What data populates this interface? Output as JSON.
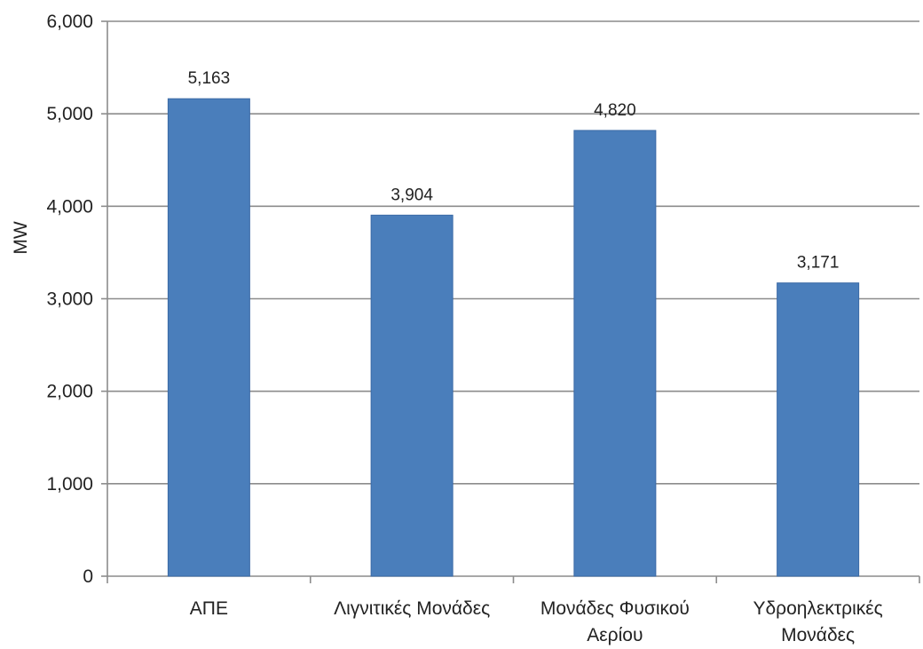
{
  "chart_data": {
    "type": "bar",
    "categories": [
      [
        "ΑΠΕ"
      ],
      [
        "Λιγνιτικές Μονάδες"
      ],
      [
        "Μονάδες Φυσικού",
        "Αερίου"
      ],
      [
        "Υδροηλεκτρικές",
        "Μονάδες"
      ]
    ],
    "values": [
      5163,
      3904,
      4820,
      3171
    ],
    "data_labels": [
      "5,163",
      "3,904",
      "4,820",
      "3,171"
    ],
    "ylabel": "MW",
    "ylim": [
      0,
      6000
    ],
    "yticks": [
      0,
      1000,
      2000,
      3000,
      4000,
      5000,
      6000
    ],
    "ytick_labels": [
      "0",
      "1,000",
      "2,000",
      "3,000",
      "4,000",
      "5,000",
      "6,000"
    ],
    "grid": true,
    "legend": "none",
    "colors": {
      "bar": "#4a7ebb",
      "bar_edge": "#3b6aa6",
      "grid": "#8c8c8c",
      "axis": "#8c8c8c",
      "text": "#222222"
    }
  }
}
